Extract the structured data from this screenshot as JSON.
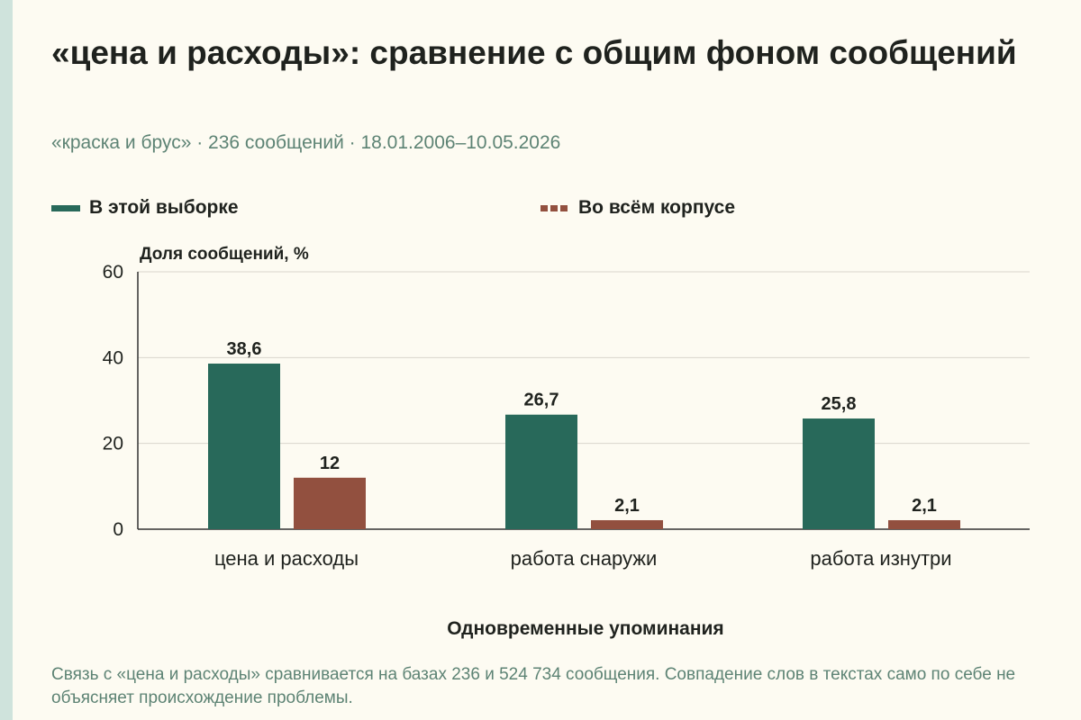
{
  "page": {
    "title": "«цена и расходы»: сравнение с общим фоном сообщений",
    "subtitle": "«краска и брус» · 236 сообщений · 18.01.2006–10.05.2026",
    "note": "Связь с «цена и расходы» сравнивается на базах 236 и 524 734 сообщения. Совпадение слов в текстах само по себе не объясняет происхождение проблемы."
  },
  "colors": {
    "series_1": "#28695a",
    "series_2": "#92503f",
    "grid": "#d9d6cc",
    "axis": "#333333",
    "text": "#1f221e",
    "muted_text": "#5d8374"
  },
  "chart_data": {
    "type": "bar",
    "title": "«цена и расходы»: сравнение с общим фоном сообщений",
    "xlabel": "Одновременные упоминания",
    "ylabel": "Доля сообщений, %",
    "categories": [
      "цена и расходы",
      "работа снаружи",
      "работа изнутри"
    ],
    "series": [
      {
        "name": "В этой выборке",
        "values": [
          38.6,
          26.7,
          25.8
        ],
        "labels": [
          "38,6",
          "26,7",
          "25,8"
        ]
      },
      {
        "name": "Во всём корпусе",
        "values": [
          12,
          2.1,
          2.1
        ],
        "labels": [
          "12",
          "2,1",
          "2,1"
        ]
      }
    ],
    "ylim": [
      0,
      60
    ],
    "yticks": [
      0,
      20,
      40,
      60
    ],
    "grid": true,
    "legend_position": "top-left"
  }
}
